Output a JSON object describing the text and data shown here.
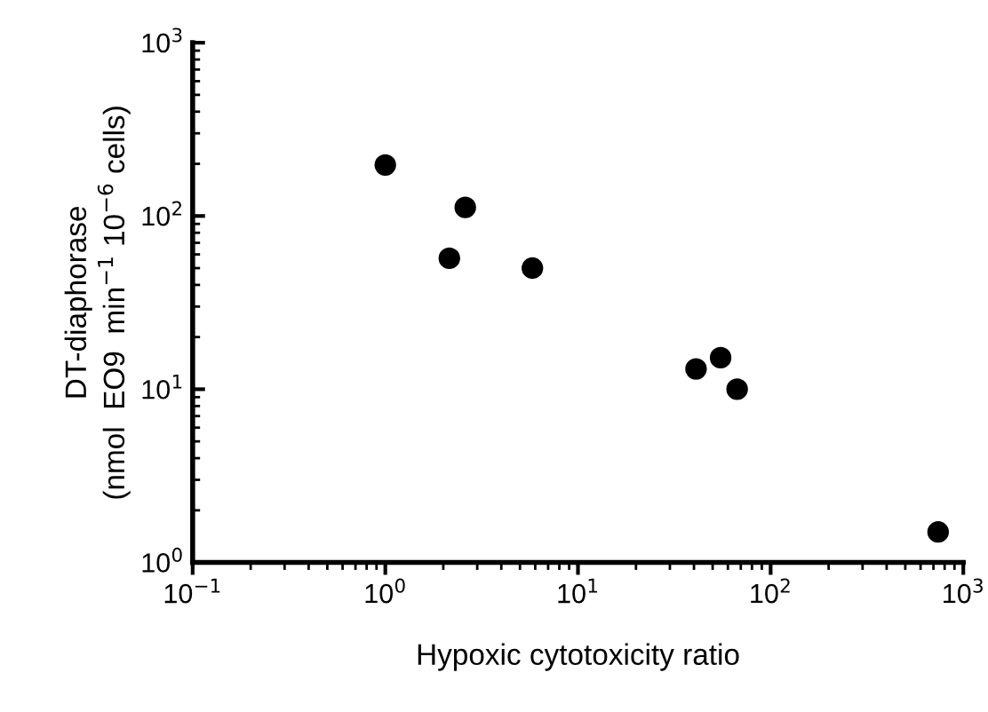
{
  "chart_data": {
    "type": "scatter",
    "xlabel": "Hypoxic cytotoxicity ratio",
    "ylabel": "DT-diaphorase\n(nmol  EO9  min$^{−1}$ 10$^{−6}$ cells)",
    "log": "xy",
    "marker": "circle",
    "grid": false,
    "x": [
      1.0,
      2.15,
      2.6,
      5.8,
      41,
      55,
      67,
      740
    ],
    "series": [
      {
        "color": "#000000",
        "values": [
          197,
          57,
          112,
          50,
          13.1,
          15.2,
          10,
          1.5
        ]
      }
    ],
    "xlim": [
      0.1,
      1000
    ],
    "ylim": [
      1,
      1000
    ],
    "xticks": [
      {
        "value": 0.1,
        "label": "10$^{−1}$"
      },
      {
        "value": 1,
        "label": "10$^{0}$"
      },
      {
        "value": 10,
        "label": "10$^{1}$"
      },
      {
        "value": 100,
        "label": "10$^{2}$"
      },
      {
        "value": 1000,
        "label": "10$^{3}$"
      }
    ],
    "yticks": [
      {
        "value": 1,
        "label": "10$^{0}$"
      },
      {
        "value": 10,
        "label": "10$^{1}$"
      },
      {
        "value": 100,
        "label": "10$^{2}$"
      },
      {
        "value": 1000,
        "label": "10$^{3}$"
      }
    ]
  }
}
